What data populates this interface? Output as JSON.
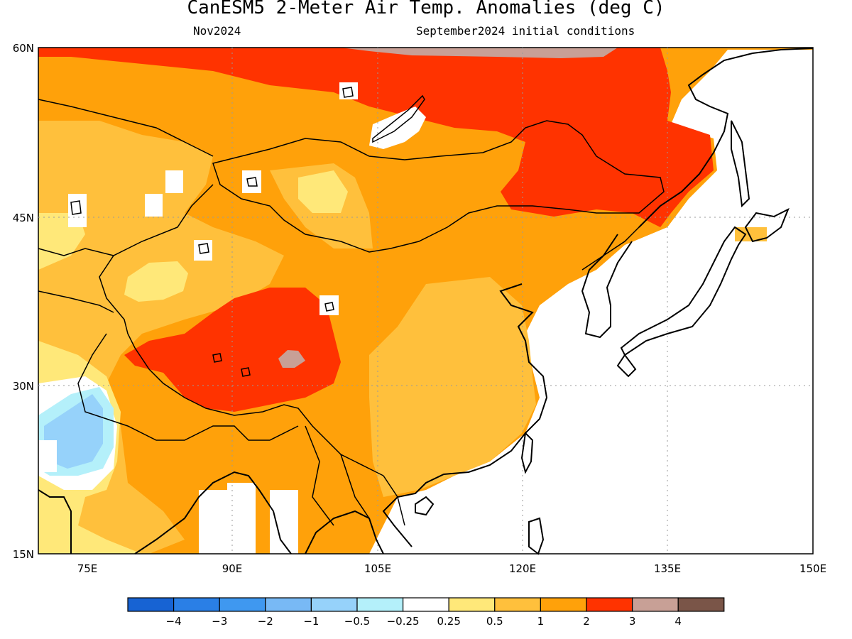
{
  "title": "CanESM5 2-Meter Air Temp. Anomalies (deg C)",
  "subtitle_left": "Nov2024",
  "subtitle_right": "September2024 initial conditions",
  "map": {
    "lon_range": [
      70,
      150
    ],
    "lat_range": [
      15,
      60
    ],
    "lat_ticks": [
      "60N",
      "45N",
      "30N",
      "15N"
    ],
    "lon_ticks": [
      "75E",
      "90E",
      "105E",
      "120E",
      "135E",
      "150E"
    ]
  },
  "colorbar": {
    "colors": [
      "#1763d3",
      "#2a7fe6",
      "#3f98f0",
      "#78b9f5",
      "#96d2fa",
      "#b4f0fa",
      "#ffffff",
      "#ffe879",
      "#ffc03c",
      "#ffa10a",
      "#ff3300",
      "#c8a096",
      "#7a5548"
    ],
    "labels": [
      "−4",
      "−3",
      "−2",
      "−1",
      "−0.5",
      "−0.25",
      "0.25",
      "0.5",
      "1",
      "2",
      "3",
      "4"
    ]
  },
  "colors": {
    "anom_0_25": "#ffe879",
    "anom_0_5": "#ffc03c",
    "anom_1": "#ffa10a",
    "anom_2": "#ff3300",
    "anom_3": "#c8a096",
    "anom_neg_0_5": "#96d2fa",
    "anom_neg_0_25": "#b4f0fa"
  }
}
